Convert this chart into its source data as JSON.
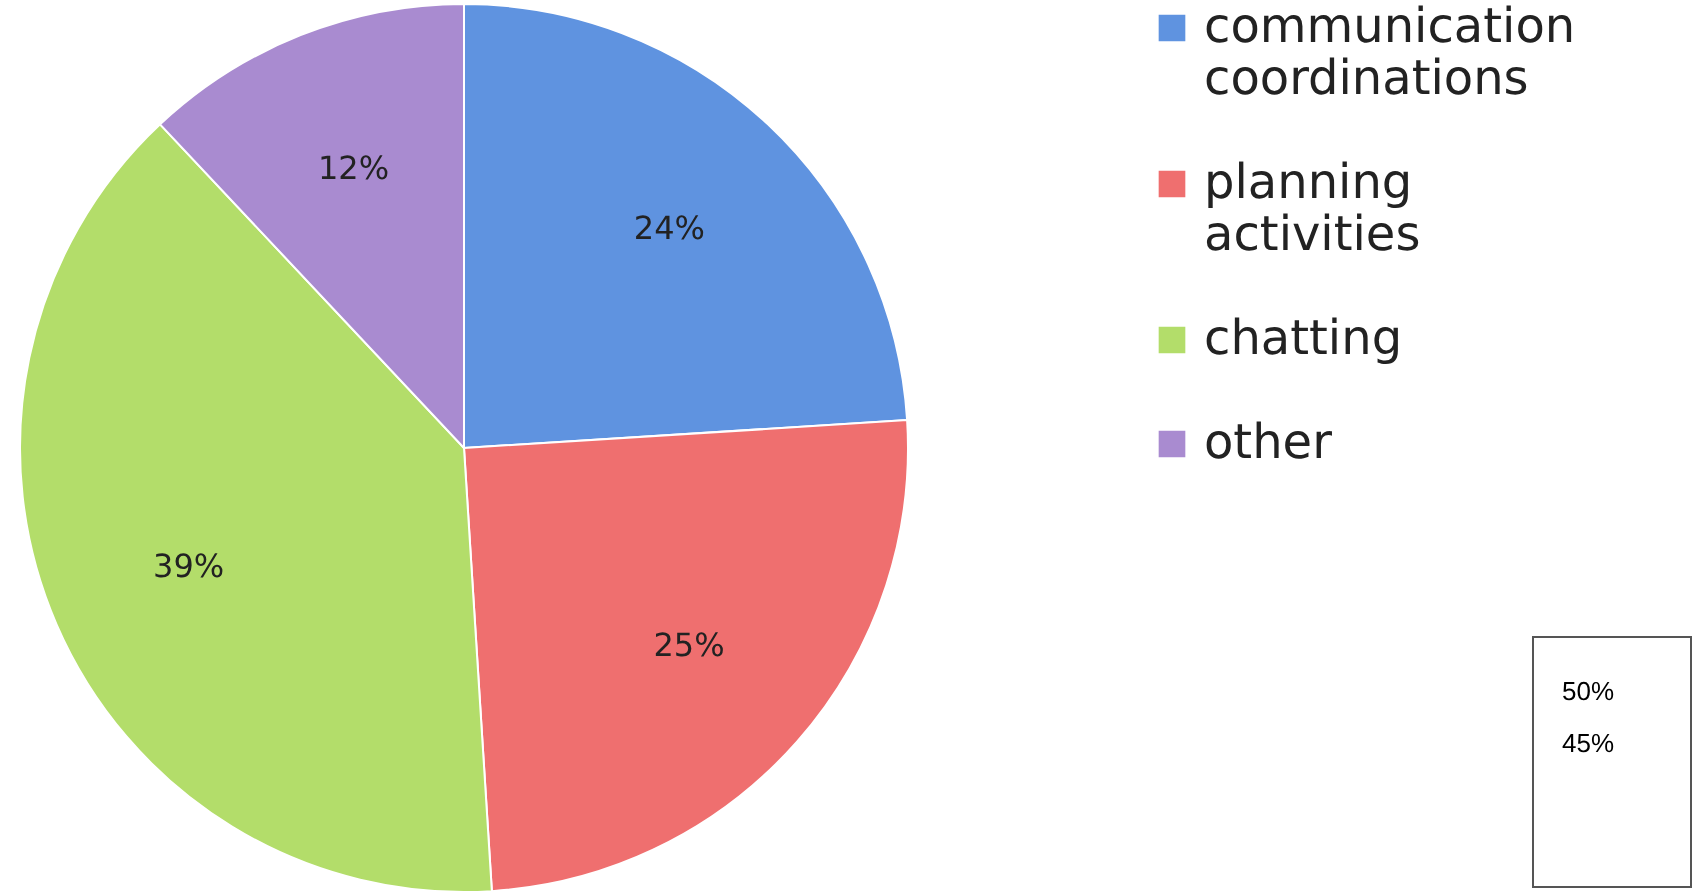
{
  "chart_data": {
    "type": "pie",
    "categories": [
      "communication coordinations",
      "planning activities",
      "chatting",
      "other"
    ],
    "values": [
      24,
      25,
      39,
      12
    ],
    "colors": [
      "#5f93e0",
      "#ef6f6f",
      "#b3dd6a",
      "#a98bd0"
    ],
    "value_labels": [
      "24%",
      "25%",
      "39%",
      "12%"
    ],
    "legend": "right",
    "annotations": [
      "50%",
      "45%"
    ]
  }
}
